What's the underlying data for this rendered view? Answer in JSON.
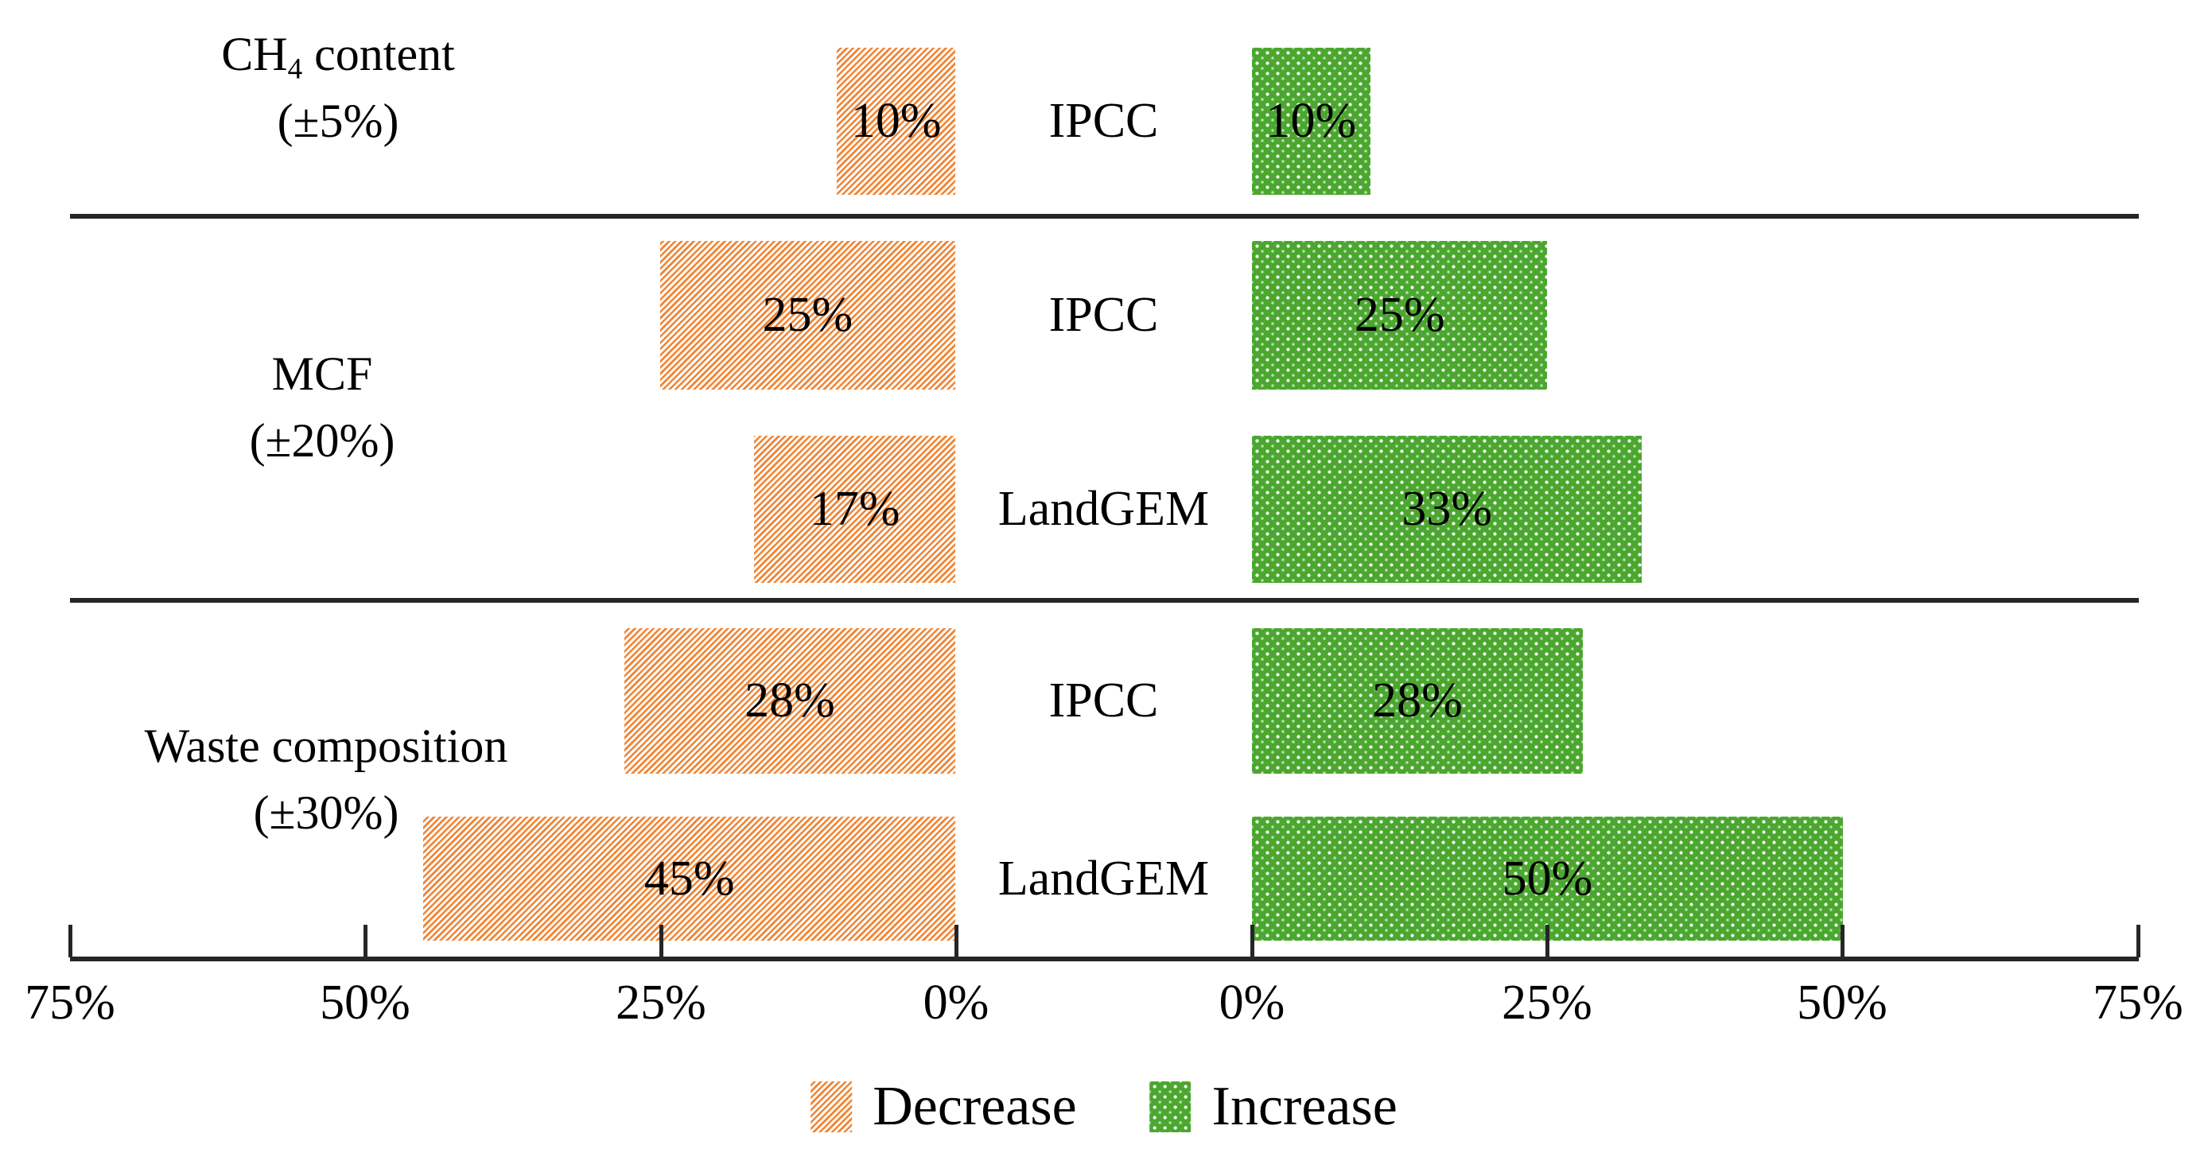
{
  "figure": {
    "colors": {
      "decrease_orange": "#F18433",
      "increase_green": "#4BA72F",
      "axis_line": "#262626",
      "text": "#000000",
      "background": "#FFFFFF"
    }
  },
  "chart_data": {
    "type": "bar",
    "variant": "diverging-tornado-sensitivity",
    "unit": "%",
    "title": "",
    "axis": {
      "left_ticks": [
        "75%",
        "50%",
        "25%",
        "0%"
      ],
      "right_ticks": [
        "0%",
        "25%",
        "50%",
        "75%"
      ],
      "max_percent": 75,
      "grid": false,
      "orientation": "horizontal-diverging"
    },
    "groups": [
      {
        "parameter": {
          "pre": "CH",
          "sub": "4",
          "post": " content"
        },
        "uncertainty": "(±5%)",
        "rows": [
          {
            "model": "IPCC",
            "decrease": 10,
            "decrease_label": "10%",
            "increase": 10,
            "increase_label": "10%"
          }
        ]
      },
      {
        "parameter": {
          "pre": "MCF",
          "sub": "",
          "post": ""
        },
        "uncertainty": "(±20%)",
        "rows": [
          {
            "model": "IPCC",
            "decrease": 25,
            "decrease_label": "25%",
            "increase": 25,
            "increase_label": "25%"
          },
          {
            "model": "LandGEM",
            "decrease": 17,
            "decrease_label": "17%",
            "increase": 33,
            "increase_label": "33%"
          }
        ]
      },
      {
        "parameter": {
          "pre": "Waste composition",
          "sub": "",
          "post": ""
        },
        "uncertainty": "(±30%)",
        "rows": [
          {
            "model": "IPCC",
            "decrease": 28,
            "decrease_label": "28%",
            "increase": 28,
            "increase_label": "28%"
          },
          {
            "model": "LandGEM",
            "decrease": 45,
            "decrease_label": "45%",
            "increase": 50,
            "increase_label": "50%"
          }
        ]
      }
    ],
    "legend": [
      {
        "label": "Decrease",
        "pattern": "diagonal-stripes",
        "color": "#F18433"
      },
      {
        "label": "Increase",
        "pattern": "dots",
        "color": "#4BA72F"
      }
    ]
  }
}
